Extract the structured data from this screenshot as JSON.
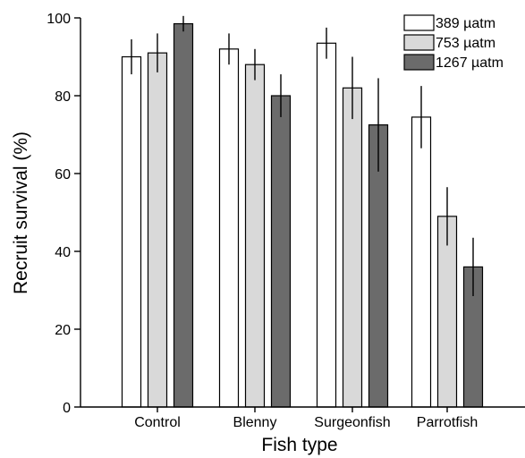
{
  "chart_data": {
    "type": "bar",
    "xlabel": "Fish type",
    "ylabel": "Recruit survival (%)",
    "ylim": [
      0,
      100
    ],
    "yticks": [
      0,
      20,
      40,
      60,
      80,
      100
    ],
    "categories": [
      "Control",
      "Blenny",
      "Surgeonfish",
      "Parrotfish"
    ],
    "legend_position": "top-right",
    "grid": false,
    "series": [
      {
        "name": "389 µatm",
        "color": "#ffffff",
        "values": [
          90,
          92,
          93.5,
          74.5
        ],
        "errors": [
          4.5,
          4,
          4,
          8
        ]
      },
      {
        "name": "753 µatm",
        "color": "#d9d9d9",
        "values": [
          91,
          88,
          82,
          49
        ],
        "errors": [
          5,
          4,
          8,
          7.5
        ]
      },
      {
        "name": "1267 µatm",
        "color": "#6b6b6b",
        "values": [
          98.5,
          80,
          72.5,
          36
        ],
        "errors": [
          2,
          5.5,
          12,
          7.5
        ]
      }
    ]
  }
}
